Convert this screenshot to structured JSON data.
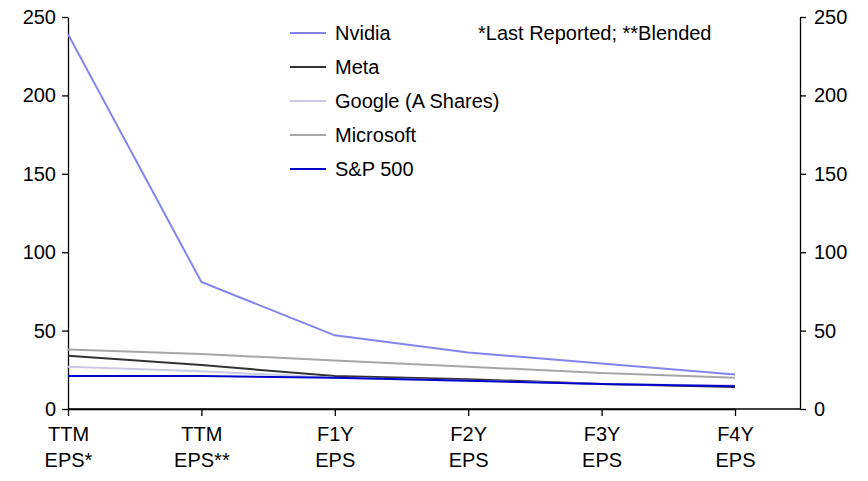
{
  "chart_data": {
    "type": "line",
    "categories": [
      "TTM EPS*",
      "TTM EPS**",
      "F1Y EPS",
      "F2Y EPS",
      "F3Y EPS",
      "F4Y EPS"
    ],
    "series": [
      {
        "name": "Nvidia",
        "color": "#8484ee",
        "values": [
          239,
          81,
          47,
          36,
          29,
          22
        ]
      },
      {
        "name": "Meta",
        "color": "#333333",
        "values": [
          34,
          28,
          21,
          19,
          16,
          14
        ]
      },
      {
        "name": "Google (A Shares)",
        "color": "#cacae8",
        "values": [
          27,
          24,
          20,
          18,
          16,
          15
        ]
      },
      {
        "name": "Microsoft",
        "color": "#a6a6a6",
        "values": [
          38,
          35,
          31,
          27,
          23,
          20
        ]
      },
      {
        "name": "S&P 500",
        "color": "#0000cc",
        "values": [
          21,
          21,
          20,
          18,
          16,
          14.5
        ]
      }
    ],
    "annotations": [
      "*Last Reported; **Blended"
    ],
    "ylim": [
      0,
      250
    ],
    "yticks": [
      0,
      50,
      100,
      150,
      200,
      250
    ],
    "y2lim": [
      0,
      250
    ],
    "y2ticks": [
      0,
      50,
      100,
      150,
      200,
      250
    ],
    "legend": "top",
    "grid": false
  }
}
